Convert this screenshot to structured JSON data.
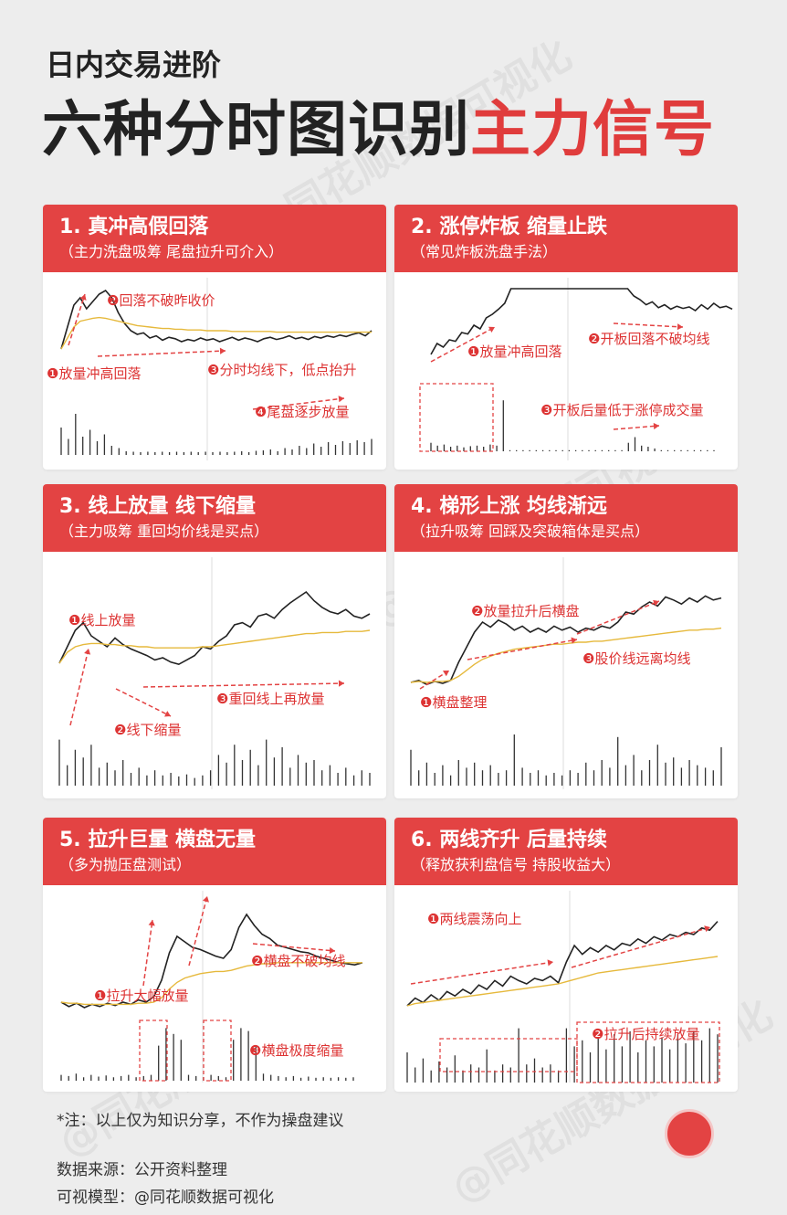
{
  "header": {
    "subtitle": "日内交易进阶",
    "title_main": "六种分时图识别",
    "title_accent": "主力信号"
  },
  "watermark": "@同花顺数据可视化",
  "colors": {
    "accent": "#e34343",
    "price": "#222222",
    "avg": "#e6b93c",
    "annot": "#e34343"
  },
  "chart_data": [
    {
      "type": "line",
      "title": "1. 真冲高假回落",
      "subtitle": "（主力洗盘吸筹 尾盘拉升可介入）",
      "annotations": [
        "❶放量冲高回落",
        "❷回落不破昨收价",
        "❸分时均线下，低点抬升",
        "❹尾盘逐步放量"
      ],
      "series": [
        {
          "values": [
            0.2,
            0.5,
            0.8,
            0.9,
            0.75,
            0.85,
            0.95,
            1.0,
            0.9,
            0.7,
            0.55,
            0.45,
            0.4,
            0.42,
            0.35,
            0.38,
            0.32,
            0.36,
            0.34,
            0.3,
            0.33,
            0.31,
            0.35,
            0.32,
            0.34,
            0.3,
            0.33,
            0.36,
            0.32,
            0.35,
            0.33,
            0.3,
            0.34,
            0.36,
            0.33,
            0.35,
            0.38,
            0.34,
            0.36,
            0.33,
            0.37,
            0.35,
            0.38,
            0.36,
            0.39,
            0.37,
            0.4,
            0.42,
            0.38,
            0.45
          ]
        },
        {
          "values": [
            0.2,
            0.35,
            0.5,
            0.58,
            0.6,
            0.62,
            0.63,
            0.62,
            0.6,
            0.58,
            0.56,
            0.54,
            0.52,
            0.51,
            0.5,
            0.49,
            0.48,
            0.48,
            0.47,
            0.47,
            0.46,
            0.46,
            0.46,
            0.45,
            0.45,
            0.45,
            0.45,
            0.44,
            0.44,
            0.44,
            0.44,
            0.44,
            0.44,
            0.44,
            0.43,
            0.43,
            0.43,
            0.43,
            0.43,
            0.43,
            0.43,
            0.43,
            0.43,
            0.43,
            0.43,
            0.43,
            0.43,
            0.43,
            0.43,
            0.43
          ]
        }
      ],
      "volume": [
        0.6,
        0.35,
        0.9,
        0.4,
        0.55,
        0.3,
        0.45,
        0.2,
        0.15,
        0.08,
        0.07,
        0.06,
        0.07,
        0.06,
        0.07,
        0.06,
        0.07,
        0.06,
        0.07,
        0.06,
        0.07,
        0.06,
        0.07,
        0.06,
        0.07,
        0.08,
        0.06,
        0.09,
        0.1,
        0.12,
        0.08,
        0.15,
        0.12,
        0.2,
        0.15,
        0.25,
        0.18,
        0.28,
        0.22,
        0.3,
        0.26,
        0.32,
        0.28,
        0.35
      ]
    },
    {
      "type": "line",
      "title": "2. 涨停炸板 缩量止跌",
      "subtitle": "（常见炸板洗盘手法）",
      "annotations": [
        "❶放量冲高回落",
        "❷开板回落不破均线",
        "❸开板后量低于涨停成交量"
      ],
      "series": [
        {
          "values": [
            0.1,
            0.25,
            0.2,
            0.3,
            0.28,
            0.4,
            0.38,
            0.5,
            0.45,
            0.6,
            0.65,
            0.72,
            0.8,
            1.0,
            1.0,
            1.0,
            1.0,
            1.0,
            1.0,
            1.0,
            1.0,
            1.0,
            1.0,
            1.0,
            1.0,
            1.0,
            1.0,
            1.0,
            1.0,
            1.0,
            1.0,
            1.0,
            1.0,
            0.9,
            0.85,
            0.78,
            0.82,
            0.74,
            0.78,
            0.72,
            0.76,
            0.73,
            0.75,
            0.7,
            0.78,
            0.72,
            0.8,
            0.74,
            0.76,
            0.72
          ]
        }
      ],
      "volume": [
        0.15,
        0.1,
        0.12,
        0.08,
        0.1,
        0.07,
        0.09,
        0.1,
        0.08,
        0.12,
        0.1,
        0.9,
        0.02,
        0.02,
        0.02,
        0.02,
        0.02,
        0.02,
        0.02,
        0.02,
        0.02,
        0.02,
        0.02,
        0.02,
        0.02,
        0.02,
        0.02,
        0.02,
        0.02,
        0.02,
        0.15,
        0.25,
        0.1,
        0.08,
        0.05,
        0.02,
        0.02,
        0.02,
        0.02,
        0.02,
        0.02,
        0.02,
        0.02,
        0.02
      ]
    },
    {
      "type": "line",
      "title": "3. 线上放量 线下缩量",
      "subtitle": "（主力吸筹 重回均价线是买点）",
      "annotations": [
        "❶线上放量",
        "❷线下缩量",
        "❸重回线上再放量"
      ],
      "series": [
        {
          "values": [
            0.35,
            0.5,
            0.65,
            0.72,
            0.6,
            0.55,
            0.5,
            0.58,
            0.52,
            0.48,
            0.45,
            0.42,
            0.38,
            0.4,
            0.36,
            0.34,
            0.38,
            0.42,
            0.5,
            0.48,
            0.55,
            0.6,
            0.7,
            0.72,
            0.68,
            0.78,
            0.8,
            0.76,
            0.84,
            0.9,
            0.95,
            1.0,
            0.92,
            0.86,
            0.82,
            0.8,
            0.84,
            0.78,
            0.76,
            0.8
          ]
        },
        {
          "values": [
            0.35,
            0.45,
            0.5,
            0.52,
            0.53,
            0.53,
            0.52,
            0.52,
            0.51,
            0.51,
            0.5,
            0.5,
            0.49,
            0.49,
            0.49,
            0.49,
            0.49,
            0.49,
            0.5,
            0.5,
            0.51,
            0.52,
            0.53,
            0.54,
            0.55,
            0.56,
            0.57,
            0.58,
            0.59,
            0.6,
            0.61,
            0.62,
            0.62,
            0.63,
            0.63,
            0.63,
            0.64,
            0.64,
            0.64,
            0.65
          ]
        }
      ],
      "volume": [
        0.9,
        0.4,
        0.7,
        0.55,
        0.8,
        0.35,
        0.45,
        0.3,
        0.5,
        0.25,
        0.35,
        0.2,
        0.3,
        0.2,
        0.25,
        0.18,
        0.22,
        0.15,
        0.2,
        0.3,
        0.6,
        0.45,
        0.8,
        0.5,
        0.7,
        0.4,
        0.9,
        0.55,
        0.75,
        0.35,
        0.6,
        0.45,
        0.5,
        0.3,
        0.4,
        0.25,
        0.35,
        0.2,
        0.3,
        0.25
      ]
    },
    {
      "type": "line",
      "title": "4. 梯形上涨 均线渐远",
      "subtitle": "（拉升吸筹 回踩及突破箱体是买点）",
      "annotations": [
        "❶横盘整理",
        "❷放量拉升后横盘",
        "❸股价线远离均线"
      ],
      "series": [
        {
          "values": [
            0.1,
            0.12,
            0.08,
            0.11,
            0.09,
            0.12,
            0.3,
            0.45,
            0.6,
            0.7,
            0.65,
            0.72,
            0.68,
            0.62,
            0.66,
            0.6,
            0.64,
            0.6,
            0.66,
            0.62,
            0.65,
            0.6,
            0.64,
            0.62,
            0.66,
            0.64,
            0.7,
            0.8,
            0.78,
            0.85,
            0.9,
            0.86,
            0.95,
            0.92,
            0.88,
            0.94,
            0.9,
            0.96,
            0.92,
            0.94
          ]
        },
        {
          "values": [
            0.1,
            0.11,
            0.1,
            0.11,
            0.11,
            0.12,
            0.16,
            0.22,
            0.28,
            0.33,
            0.36,
            0.39,
            0.41,
            0.43,
            0.44,
            0.45,
            0.46,
            0.47,
            0.48,
            0.48,
            0.49,
            0.5,
            0.5,
            0.51,
            0.51,
            0.52,
            0.53,
            0.54,
            0.55,
            0.56,
            0.57,
            0.58,
            0.59,
            0.6,
            0.61,
            0.62,
            0.62,
            0.63,
            0.63,
            0.64
          ]
        }
      ],
      "volume": [
        0.7,
        0.3,
        0.45,
        0.25,
        0.4,
        0.2,
        0.5,
        0.35,
        0.45,
        0.3,
        0.4,
        0.25,
        0.3,
        1.0,
        0.35,
        0.25,
        0.3,
        0.2,
        0.25,
        0.2,
        0.3,
        0.25,
        0.45,
        0.3,
        0.5,
        0.35,
        0.95,
        0.4,
        0.6,
        0.3,
        0.5,
        0.8,
        0.45,
        0.55,
        0.35,
        0.5,
        0.4,
        0.35,
        0.3,
        0.75
      ]
    },
    {
      "type": "line",
      "title": "5. 拉升巨量 横盘无量",
      "subtitle": "（多为抛压盘测试）",
      "annotations": [
        "❶拉升大幅放量",
        "❷横盘不破均线",
        "❸横盘极度缩量"
      ],
      "series": [
        {
          "values": [
            0.1,
            0.06,
            0.09,
            0.05,
            0.08,
            0.06,
            0.09,
            0.07,
            0.1,
            0.08,
            0.12,
            0.1,
            0.15,
            0.3,
            0.55,
            0.7,
            0.65,
            0.6,
            0.58,
            0.55,
            0.52,
            0.5,
            0.58,
            0.78,
            0.9,
            0.8,
            0.72,
            0.68,
            0.62,
            0.6,
            0.58,
            0.56,
            0.55,
            0.52,
            0.5,
            0.48,
            0.46,
            0.45,
            0.44,
            0.46
          ]
        },
        {
          "values": [
            0.1,
            0.09,
            0.09,
            0.08,
            0.08,
            0.08,
            0.08,
            0.08,
            0.08,
            0.08,
            0.09,
            0.09,
            0.1,
            0.14,
            0.22,
            0.28,
            0.32,
            0.34,
            0.36,
            0.37,
            0.38,
            0.38,
            0.39,
            0.41,
            0.43,
            0.44,
            0.45,
            0.45,
            0.46,
            0.46,
            0.46,
            0.46,
            0.46,
            0.46,
            0.46,
            0.46,
            0.46,
            0.46,
            0.46,
            0.46
          ]
        }
      ],
      "volume": [
        0.1,
        0.08,
        0.12,
        0.06,
        0.1,
        0.07,
        0.09,
        0.06,
        0.08,
        0.1,
        0.06,
        0.08,
        0.1,
        0.6,
        0.9,
        0.8,
        0.7,
        0.1,
        0.08,
        0.06,
        0.1,
        0.08,
        0.06,
        0.7,
        0.9,
        0.85,
        0.6,
        0.12,
        0.1,
        0.08,
        0.06,
        0.08,
        0.05,
        0.07,
        0.05,
        0.06,
        0.05,
        0.06,
        0.05,
        0.06
      ]
    },
    {
      "type": "line",
      "title": "6. 两线齐升 后量持续",
      "subtitle": "（释放获利盘信号 持股收益大）",
      "annotations": [
        "❶两线震荡向上",
        "❷拉升后持续放量"
      ],
      "series": [
        {
          "values": [
            0.15,
            0.22,
            0.18,
            0.25,
            0.2,
            0.28,
            0.24,
            0.3,
            0.26,
            0.34,
            0.3,
            0.38,
            0.33,
            0.42,
            0.38,
            0.35,
            0.4,
            0.38,
            0.42,
            0.36,
            0.55,
            0.7,
            0.62,
            0.68,
            0.64,
            0.7,
            0.66,
            0.72,
            0.7,
            0.76,
            0.72,
            0.78,
            0.75,
            0.8,
            0.78,
            0.82,
            0.8,
            0.86,
            0.84,
            0.92
          ]
        },
        {
          "values": [
            0.15,
            0.17,
            0.18,
            0.19,
            0.2,
            0.21,
            0.22,
            0.23,
            0.24,
            0.25,
            0.26,
            0.27,
            0.28,
            0.29,
            0.3,
            0.31,
            0.32,
            0.33,
            0.34,
            0.35,
            0.37,
            0.39,
            0.41,
            0.43,
            0.45,
            0.46,
            0.47,
            0.48,
            0.49,
            0.5,
            0.51,
            0.52,
            0.53,
            0.54,
            0.55,
            0.56,
            0.57,
            0.58,
            0.59,
            0.6
          ]
        }
      ],
      "volume": [
        0.5,
        0.25,
        0.4,
        0.2,
        0.35,
        0.25,
        0.45,
        0.2,
        0.3,
        0.25,
        0.55,
        0.2,
        0.3,
        0.25,
        0.9,
        0.3,
        0.4,
        0.25,
        0.3,
        0.2,
        0.9,
        0.6,
        0.7,
        0.5,
        0.75,
        0.55,
        0.8,
        0.6,
        0.85,
        0.5,
        0.7,
        0.6,
        0.75,
        0.55,
        0.8,
        0.65,
        0.85,
        0.7,
        0.9,
        0.8
      ]
    }
  ],
  "footer": {
    "note": "*注：以上仅为知识分享，不作为操盘建议",
    "source": "数据来源：公开资料整理",
    "model": "可视模型：@同花顺数据可视化"
  }
}
